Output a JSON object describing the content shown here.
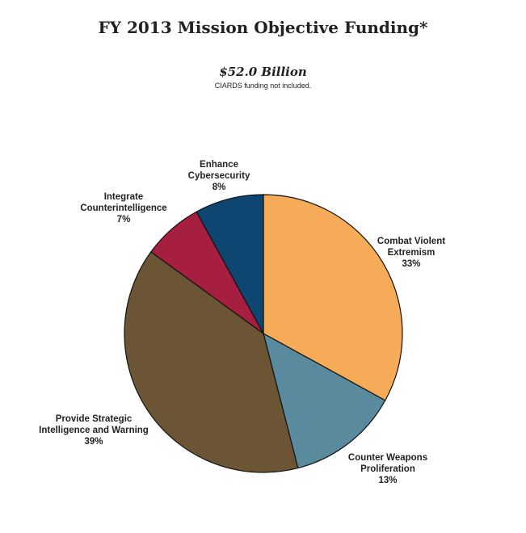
{
  "chart_data": {
    "type": "pie",
    "title": "FY 2013 Mission Objective Funding*",
    "total_label": "$52.0 Billion",
    "note": "CIARDS funding not included.",
    "slices": [
      {
        "label_lines": [
          "Combat Violent",
          "Extremism"
        ],
        "value": 33,
        "pct_label": "33%",
        "color": "#F5AB57"
      },
      {
        "label_lines": [
          "Counter Weapons",
          "Proliferation"
        ],
        "value": 13,
        "pct_label": "13%",
        "color": "#5A8A9D"
      },
      {
        "label_lines": [
          "Provide Strategic",
          "Intelligence and Warning"
        ],
        "value": 39,
        "pct_label": "39%",
        "color": "#6B5535"
      },
      {
        "label_lines": [
          "Integrate",
          "Counterintelligence"
        ],
        "value": 7,
        "pct_label": "7%",
        "color": "#A61F41"
      },
      {
        "label_lines": [
          "Enhance",
          "Cybersecurity"
        ],
        "value": 8,
        "pct_label": "8%",
        "color": "#0E4571"
      }
    ]
  }
}
